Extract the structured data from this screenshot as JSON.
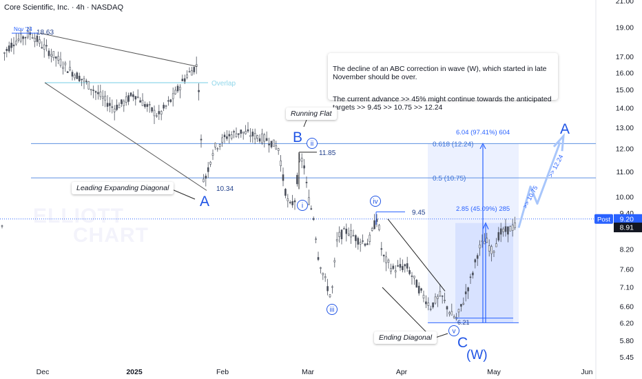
{
  "header": {
    "title": "Core Scientific, Inc. · 4h · NASDAQ"
  },
  "colors": {
    "accent": "#2962ff",
    "label_blue": "#1e53e5",
    "price_tag": "#2962ff",
    "last_tag": "#131722"
  },
  "chart_data": {
    "type": "candlestick",
    "symbol": "Core Scientific, Inc.",
    "timeframe": "4h",
    "exchange": "NASDAQ",
    "y_scale": "log",
    "ylim": [
      5.3,
      22.5
    ],
    "y_ticks": [
      "21.00",
      "19.00",
      "17.00",
      "16.00",
      "15.00",
      "14.00",
      "13.00",
      "12.00",
      "11.00",
      "10.00",
      "9.40",
      "8.91",
      "8.20",
      "7.60",
      "7.10",
      "6.60",
      "6.20",
      "5.80",
      "5.45"
    ],
    "x_ticks": [
      "Dec",
      "2025",
      "Feb",
      "Mar",
      "Apr",
      "May",
      "Jun"
    ],
    "watermark": [
      "ELLIOTT",
      "CHART"
    ],
    "post_tag": {
      "label": "Post",
      "value": "9.20"
    },
    "last_price": "8.91",
    "price_labels": [
      {
        "id": "nov24",
        "text": "Nov '24"
      },
      {
        "id": "p1863",
        "text": "18.63"
      },
      {
        "id": "p1034",
        "text": "10.34"
      },
      {
        "id": "p1185",
        "text": "11.85"
      },
      {
        "id": "p945",
        "text": "9.45"
      },
      {
        "id": "p621",
        "text": "6.21"
      }
    ],
    "overlap_label": "Overlap",
    "fib_levels": [
      {
        "label": "0.618 (12.24)",
        "value": 12.24
      },
      {
        "label": "0.5 (10.75)",
        "value": 10.75
      }
    ],
    "measures": [
      {
        "label": "6.04 (97.41%) 604"
      },
      {
        "label": "2.85 (45.09%) 285"
      }
    ],
    "waves": [
      {
        "id": "A1",
        "text": "A"
      },
      {
        "id": "B",
        "text": "B"
      },
      {
        "id": "C",
        "text": "C"
      },
      {
        "id": "W",
        "text": "(W)"
      },
      {
        "id": "A2",
        "text": "A"
      },
      {
        "id": "i",
        "text": "i"
      },
      {
        "id": "ii",
        "text": "ii"
      },
      {
        "id": "iii",
        "text": "iii"
      },
      {
        "id": "iv",
        "text": "iv"
      },
      {
        "id": "v",
        "text": "v"
      }
    ],
    "targets": [
      {
        "id": "t1075",
        "text": ">> 10.75"
      },
      {
        "id": "t1224",
        "text": ">> 12.24"
      }
    ],
    "callouts": [
      {
        "id": "leading",
        "text": "Leading Expanding Diagonal"
      },
      {
        "id": "running",
        "text": "Running Flat"
      },
      {
        "id": "ending",
        "text": "Ending Diagonal"
      }
    ],
    "annotation": [
      "The decline of an ABC correction in wave (W), which started in late\n November should be over.",
      "The current advance >> 45% might continue towards the anticipated\n targets >> 9.45  >> 10.75  >> 12.24"
    ]
  }
}
